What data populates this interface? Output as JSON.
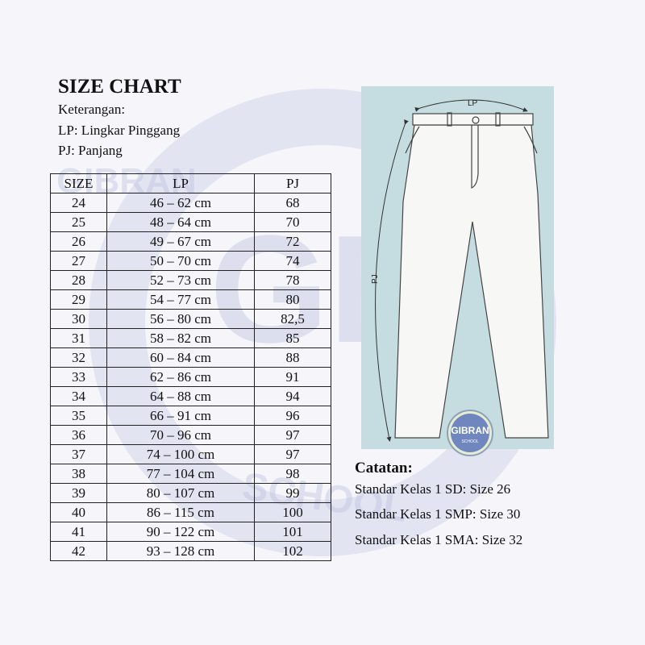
{
  "title": "SIZE CHART",
  "legend": {
    "heading": "Keterangan:",
    "lp": "LP: Lingkar Pinggang",
    "pj": "PJ: Panjang"
  },
  "table": {
    "headers": [
      "SIZE",
      "LP",
      "PJ"
    ],
    "rows": [
      [
        "24",
        "46 – 62 cm",
        "68"
      ],
      [
        "25",
        "48 – 64 cm",
        "70"
      ],
      [
        "26",
        "49 – 67 cm",
        "72"
      ],
      [
        "27",
        "50 – 70 cm",
        "74"
      ],
      [
        "28",
        "52 – 73 cm",
        "78"
      ],
      [
        "29",
        "54 – 77 cm",
        "80"
      ],
      [
        "30",
        "56 – 80 cm",
        "82,5"
      ],
      [
        "31",
        "58 – 82 cm",
        "85"
      ],
      [
        "32",
        "60 – 84 cm",
        "88"
      ],
      [
        "33",
        "62 – 86 cm",
        "91"
      ],
      [
        "34",
        "64 – 88 cm",
        "94"
      ],
      [
        "35",
        "66 – 91 cm",
        "96"
      ],
      [
        "36",
        "70 – 96 cm",
        "97"
      ],
      [
        "37",
        "74 – 100 cm",
        "97"
      ],
      [
        "38",
        "77 – 104 cm",
        "98"
      ],
      [
        "39",
        "80 – 107 cm",
        "99"
      ],
      [
        "40",
        "86 – 115 cm",
        "100"
      ],
      [
        "41",
        "90 – 122 cm",
        "101"
      ],
      [
        "42",
        "93 – 128 cm",
        "102"
      ]
    ]
  },
  "diagram": {
    "lp_label": "LP",
    "pj_label": "PJ",
    "logo_name": "GIBRAN",
    "logo_sub": "SCHOOL",
    "panel_color": "#c5dde1",
    "logo_color": "#6f86bf"
  },
  "notes": {
    "title": "Catatan:",
    "items": [
      "Standar Kelas 1 SD: Size 26",
      "Standar Kelas 1 SMP: Size 30",
      "Standar Kelas 1 SMA: Size 32"
    ]
  },
  "watermark": {
    "brand": "GIBRAN",
    "sub": "SCHOOL",
    "mark": "GB"
  }
}
